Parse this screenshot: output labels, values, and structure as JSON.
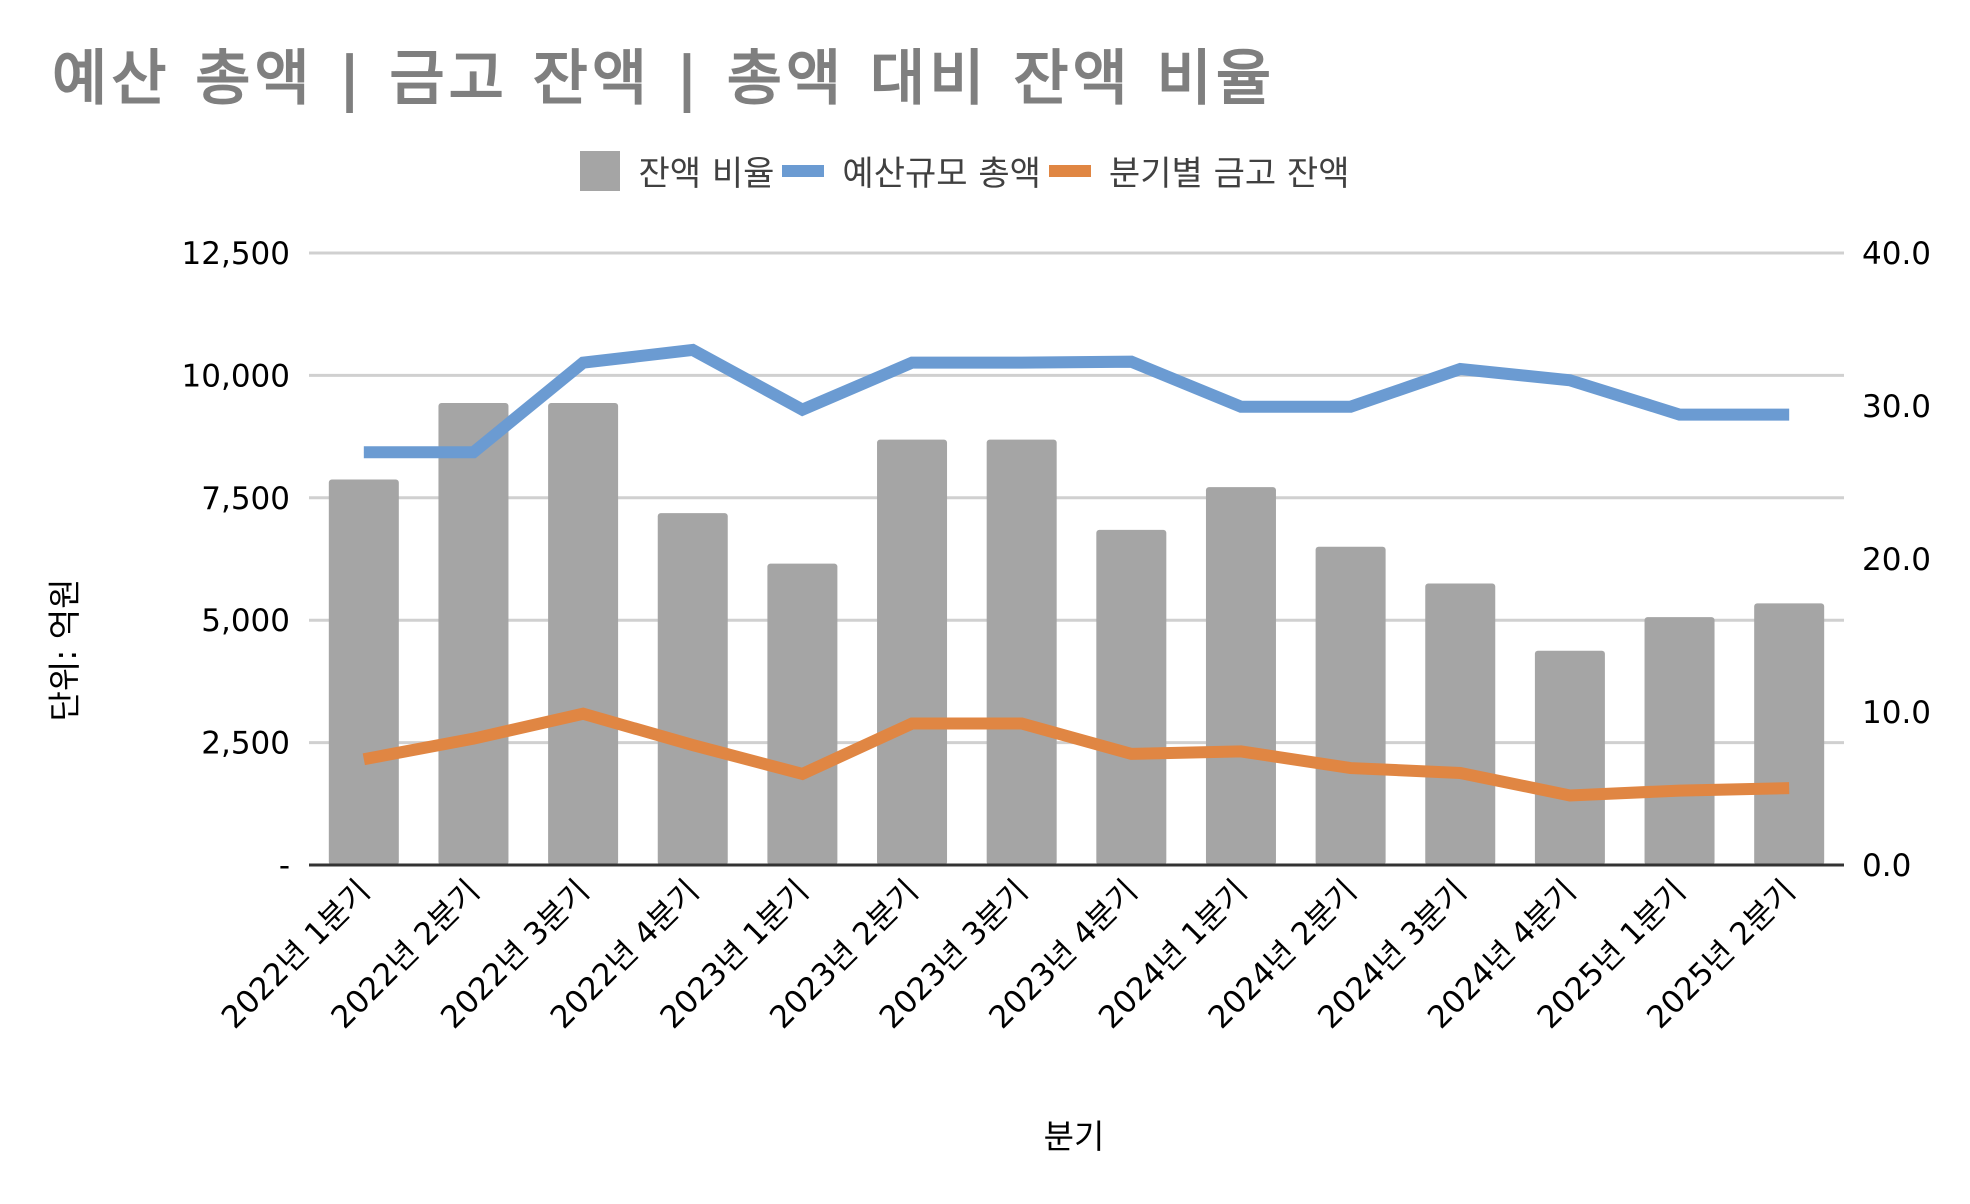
{
  "chart_data": {
    "type": "bar+line",
    "title": "예산 총액 | 금고 잔액 | 총액 대비 잔액 비율",
    "xlabel": "분기",
    "ylabel": "단위: 억원",
    "categories": [
      "2022년 1분기",
      "2022년 2분기",
      "2022년 3분기",
      "2022년 4분기",
      "2023년 1분기",
      "2023년 2분기",
      "2023년 3분기",
      "2023년 4분기",
      "2024년 1분기",
      "2024년 2분기",
      "2024년 3분기",
      "2024년 4분기",
      "2025년 1분기",
      "2025년 2분기"
    ],
    "left_axis": {
      "ylim": [
        0,
        12500
      ],
      "ticks": [
        0,
        2500,
        5000,
        7500,
        10000,
        12500
      ],
      "tick_labels": [
        "-",
        "2,500",
        "5,000",
        "7,500",
        "10,000",
        "12,500"
      ]
    },
    "right_axis": {
      "ylim": [
        0,
        40
      ],
      "ticks": [
        0,
        10,
        20,
        30,
        40
      ],
      "tick_labels": [
        "0.0",
        "10.0",
        "20.0",
        "30.0",
        "40.0"
      ]
    },
    "grid": true,
    "legend_position": "top",
    "series": [
      {
        "name": "잔액 비율",
        "type": "bar",
        "axis": "right",
        "color": "#a5a5a5",
        "values": [
          25.2,
          30.2,
          30.2,
          23.0,
          19.7,
          27.8,
          27.8,
          21.9,
          24.7,
          20.8,
          18.4,
          14.0,
          16.2,
          17.1
        ]
      },
      {
        "name": "예산규모 총액",
        "type": "line",
        "axis": "left",
        "color": "#6b9bd2",
        "values": [
          8430,
          8430,
          10260,
          10520,
          9300,
          10260,
          10260,
          10280,
          9360,
          9360,
          10130,
          9900,
          9200,
          9200
        ]
      },
      {
        "name": "분기별 금고 잔액",
        "type": "line",
        "axis": "left",
        "color": "#e08643",
        "values": [
          2160,
          2580,
          3090,
          2450,
          1860,
          2890,
          2890,
          2270,
          2320,
          1980,
          1880,
          1420,
          1520,
          1570
        ]
      }
    ]
  }
}
